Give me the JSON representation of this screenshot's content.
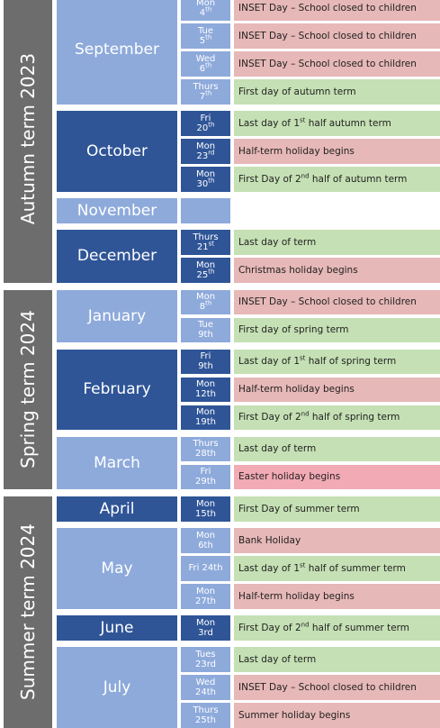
{
  "terms": [
    {
      "name": "Autumn term 2023",
      "months": [
        {
          "name": "September",
          "color": "#8eaadb",
          "rows": [
            {
              "day": "Mon",
              "num": "4",
              "suffix": "th",
              "event": "INSET Day – School closed to children",
              "color": "#e6b8b7"
            },
            {
              "day": "Tue",
              "num": "5",
              "suffix": "th",
              "event": "INSET Day – School closed to children",
              "color": "#e6b8b7"
            },
            {
              "day": "Wed",
              "num": "6",
              "suffix": "th",
              "event": "INSET Day – School closed to children",
              "color": "#e6b8b7"
            },
            {
              "day": "Thurs",
              "num": "7",
              "suffix": "th",
              "event": "First day of autumn term",
              "color": "#c5e0b4"
            }
          ]
        },
        {
          "name": "October",
          "color": "#2f5597",
          "rows": [
            {
              "day": "Fri",
              "num": "20",
              "suffix": "th",
              "event": "Last day of 1",
              "event_sup": "st",
              "event_end": " half autumn term",
              "color": "#c5e0b4"
            },
            {
              "day": "Mon",
              "num": "23",
              "suffix": "rd",
              "event": "Half-term holiday begins",
              "color": "#e6b8b7"
            },
            {
              "day": "Mon",
              "num": "30",
              "suffix": "th",
              "event": "First Day of 2",
              "event_sup": "nd",
              "event_end": " half of autumn term",
              "color": "#c5e0b4"
            }
          ]
        },
        {
          "name": "November",
          "color": "#8eaadb",
          "rows": []
        },
        {
          "name": "December",
          "color": "#2f5597",
          "rows": [
            {
              "day": "Thurs",
              "num": "21",
              "suffix": "st",
              "event": "Last day of term",
              "color": "#c5e0b4"
            },
            {
              "day": "Mon",
              "num": "25",
              "suffix": "th",
              "event": "Christmas holiday begins",
              "color": "#e6b8b7"
            }
          ]
        }
      ]
    },
    {
      "name": "Spring term 2024",
      "months": [
        {
          "name": "January",
          "color": "#8eaadb",
          "rows": [
            {
              "day": "Mon",
              "num": "8",
              "suffix": "th",
              "event": "INSET Day – School closed to children",
              "color": "#e6b8b7"
            },
            {
              "day": "Tue",
              "num": "9th",
              "event": "First day of spring term",
              "color": "#c5e0b4"
            }
          ]
        },
        {
          "name": "February",
          "color": "#2f5597",
          "rows": [
            {
              "day": "Fri",
              "num": "9th",
              "event": "Last day of 1",
              "event_sup": "st",
              "event_end": " half of spring term",
              "color": "#c5e0b4"
            },
            {
              "day": "Mon",
              "num": "12th",
              "event": "Half-term holiday begins",
              "color": "#e6b8b7"
            },
            {
              "day": "Mon",
              "num": "19th",
              "event": "First Day of 2",
              "event_sup": "nd",
              "event_end": " half of spring term",
              "color": "#c5e0b4"
            }
          ]
        },
        {
          "name": "March",
          "color": "#8eaadb",
          "rows": [
            {
              "day": "Thurs",
              "num": "28th",
              "event": "Last day of term",
              "color": "#c5e0b4"
            },
            {
              "day": "Fri",
              "num": "29th",
              "event": "Easter holiday begins",
              "color": "#f2aab5"
            }
          ]
        }
      ]
    },
    {
      "name": "Summer term 2024",
      "months": [
        {
          "name": "April",
          "color": "#2f5597",
          "rows": [
            {
              "day": "Mon",
              "num": "15th",
              "event": "First Day of summer term",
              "color": "#c5e0b4"
            }
          ]
        },
        {
          "name": "May",
          "color": "#8eaadb",
          "rows": [
            {
              "day": "Mon",
              "num": "6th",
              "event": "Bank Holiday",
              "color": "#e6b8b7"
            },
            {
              "day": "Fri 24th",
              "event": "Last day of 1",
              "event_sup": "st",
              "event_end": " half of summer term",
              "color": "#c5e0b4"
            },
            {
              "day": "Mon",
              "num": "27th",
              "event": "Half-term holiday begins",
              "color": "#e6b8b7"
            }
          ]
        },
        {
          "name": "June",
          "color": "#2f5597",
          "rows": [
            {
              "day": "Mon",
              "num": "3rd",
              "event": "First Day of 2",
              "event_sup": "nd",
              "event_end": " half of summer term",
              "color": "#c5e0b4"
            }
          ]
        },
        {
          "name": "July",
          "color": "#8eaadb",
          "rows": [
            {
              "day": "Tues",
              "num": "23rd",
              "event": "Last day of term",
              "color": "#c5e0b4"
            },
            {
              "day": "Wed",
              "num": "24th",
              "event": "INSET Day – School closed to children",
              "color": "#e6b8b7"
            },
            {
              "day": "Thurs",
              "num": "25th",
              "event": "Summer holiday begins",
              "color": "#e6b8b7"
            }
          ]
        }
      ]
    }
  ]
}
